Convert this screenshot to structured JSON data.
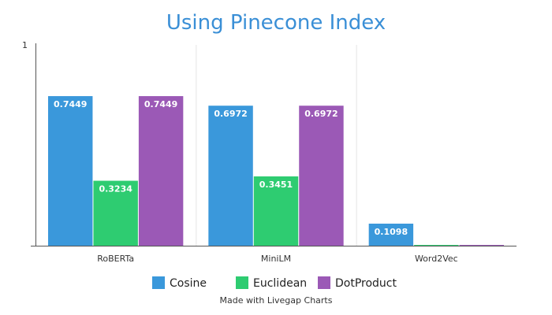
{
  "chart_data": {
    "type": "bar",
    "title": "Using Pinecone Index",
    "categories": [
      "RoBERTa",
      "MiniLM",
      "Word2Vec"
    ],
    "series": [
      {
        "name": "Cosine",
        "color": "#3a98db",
        "values": [
          0.7449,
          0.6972,
          0.1098
        ],
        "labels": [
          "0.7449",
          "0.6972",
          "0.1098"
        ]
      },
      {
        "name": "Euclidean",
        "color": "#2ecc71",
        "values": [
          0.3234,
          0.3451,
          0
        ],
        "labels": [
          "0.3234",
          "0.3451",
          ""
        ]
      },
      {
        "name": "DotProduct",
        "color": "#9b59b6",
        "values": [
          0.7449,
          0.6972,
          0
        ],
        "labels": [
          "0.7449",
          "0.6972",
          ""
        ]
      }
    ],
    "ylim": [
      0,
      1
    ],
    "yticks": [
      1
    ],
    "ytick_labels": [
      "1"
    ],
    "xlabel": "",
    "ylabel": "",
    "grid": "vertical separators between categories",
    "legend": "bottom-center"
  },
  "footer": {
    "credit": "Made with Livegap Charts"
  }
}
